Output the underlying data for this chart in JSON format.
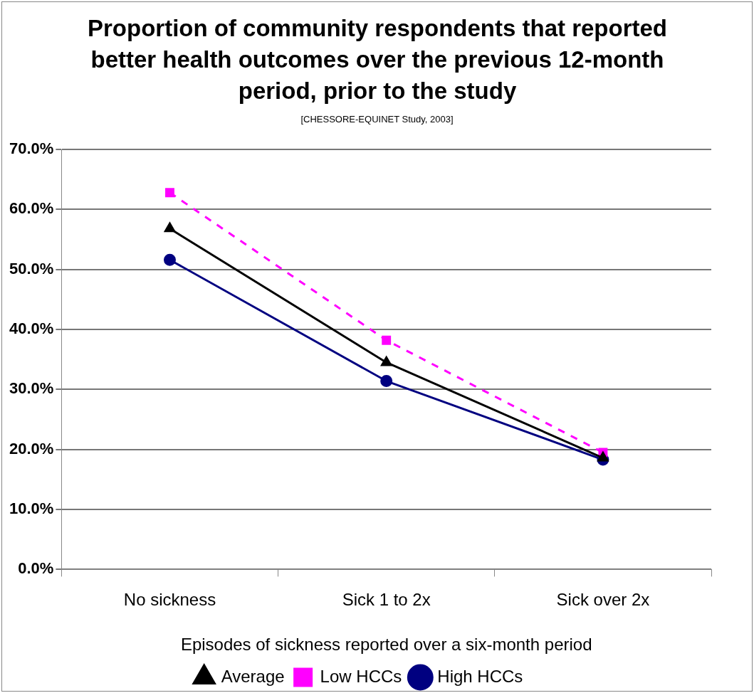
{
  "chart_data": {
    "type": "line",
    "title": "Proportion of community respondents that reported better health outcomes over the previous 12-month period, prior to the study",
    "subtitle": "[CHESSORE-EQUINET Study, 2003]",
    "xlabel": "Episodes of sickness reported over a six-month period",
    "categories": [
      "No sickness",
      "Sick 1 to 2x",
      "Sick over 2x"
    ],
    "series": [
      {
        "name": "High HCCs",
        "color": "#000080",
        "marker": "circle",
        "line_style": "solid",
        "values": [
          51.6,
          31.4,
          18.3
        ]
      },
      {
        "name": "Low HCCs",
        "color": "#ff00ff",
        "marker": "square",
        "line_style": "dashed",
        "values": [
          62.8,
          38.2,
          19.5
        ]
      },
      {
        "name": "Average",
        "color": "#000000",
        "marker": "triangle",
        "line_style": "solid",
        "values": [
          56.8,
          34.5,
          18.6
        ]
      }
    ],
    "ylim": [
      0,
      70
    ],
    "yticks": [
      {
        "value": 0,
        "label": "0.0%"
      },
      {
        "value": 10,
        "label": "10.0%"
      },
      {
        "value": 20,
        "label": "20.0%"
      },
      {
        "value": 30,
        "label": "30.0%"
      },
      {
        "value": 40,
        "label": "40.0%"
      },
      {
        "value": 50,
        "label": "50.0%"
      },
      {
        "value": 60,
        "label": "60.0%"
      },
      {
        "value": 70,
        "label": "70.0%"
      }
    ],
    "grid": "y",
    "legend": "bottom"
  }
}
